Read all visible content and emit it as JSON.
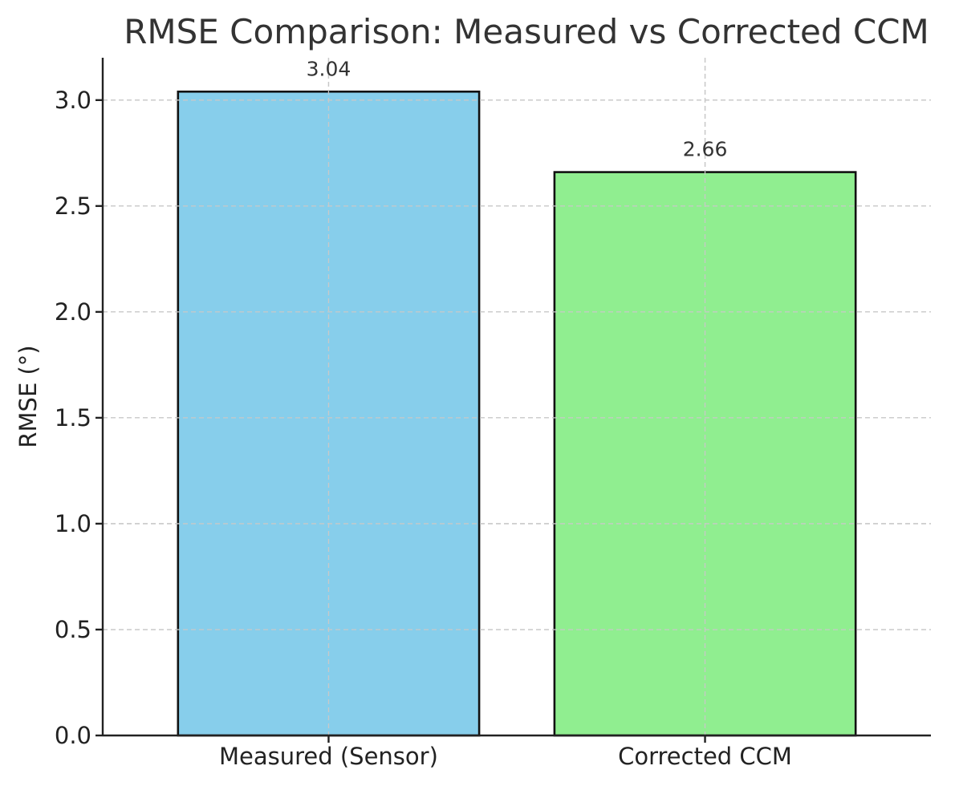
{
  "chart_data": {
    "type": "bar",
    "title": "RMSE Comparison: Measured vs Corrected CCM",
    "xlabel": "",
    "ylabel": "RMSE (°)",
    "categories": [
      "Measured (Sensor)",
      "Corrected CCM"
    ],
    "values": [
      3.04,
      2.66
    ],
    "value_labels": [
      "3.04",
      "2.66"
    ],
    "bar_colors": [
      "#87CEEB",
      "#90EE90"
    ],
    "edge_color": "#111111",
    "ylim": [
      0,
      3.2
    ],
    "yticks": [
      0.0,
      0.5,
      1.0,
      1.5,
      2.0,
      2.5,
      3.0
    ],
    "ytick_labels": [
      "0.0",
      "0.5",
      "1.0",
      "1.5",
      "2.0",
      "2.5",
      "3.0"
    ],
    "grid": true,
    "grid_style": "dashed",
    "legend": "none"
  }
}
